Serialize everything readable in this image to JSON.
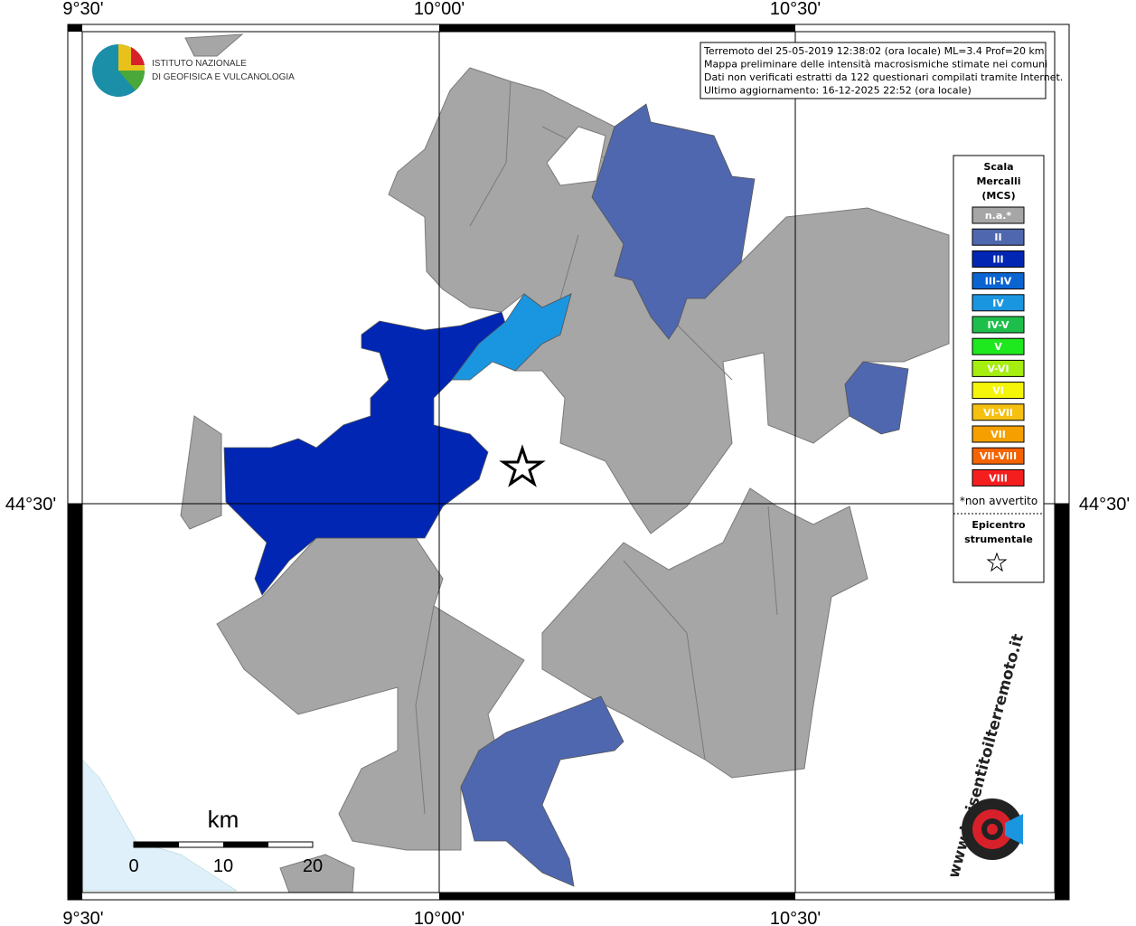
{
  "coordinates": {
    "top": [
      "9°30'",
      "10°00'",
      "10°30'"
    ],
    "bottom": [
      "9°30'",
      "10°00'",
      "10°30'"
    ],
    "left": "44°30'",
    "right": "44°30'"
  },
  "logo": {
    "line1": "ISTITUTO NAZIONALE",
    "line2": "DI GEOFISICA E VULCANOLOGIA"
  },
  "info_box": [
    "Terremoto del 25-05-2019 12:38:02 (ora locale) ML=3.4 Prof=20 km",
    "Mappa preliminare delle intensità macrosismiche stimate nei comuni",
    "Dati non verificati estratti da 122 questionari compilati tramite Internet.",
    "Ultimo aggiornamento: 16-12-2025 22:52 (ora locale)"
  ],
  "legend": {
    "title": [
      "Scala",
      "Mercalli",
      "(MCS)"
    ],
    "classes": [
      {
        "label": "n.a.*",
        "color": "#a6a6a6"
      },
      {
        "label": "II",
        "color": "#4f67ae"
      },
      {
        "label": "III",
        "color": "#0026b3"
      },
      {
        "label": "III-IV",
        "color": "#0a64d2"
      },
      {
        "label": "IV",
        "color": "#1a96e0"
      },
      {
        "label": "IV-V",
        "color": "#1dbf4a"
      },
      {
        "label": "V",
        "color": "#1ee81e"
      },
      {
        "label": "V-VI",
        "color": "#a6ee0f"
      },
      {
        "label": "VI",
        "color": "#f5f50a"
      },
      {
        "label": "VI-VII",
        "color": "#f5c010"
      },
      {
        "label": "VII",
        "color": "#f5a000"
      },
      {
        "label": "VII-VIII",
        "color": "#f56400"
      },
      {
        "label": "VIII",
        "color": "#f51e1e"
      }
    ],
    "note": "*non avvertito",
    "epicenter": [
      "Epicentro",
      "strumentale"
    ]
  },
  "scale_bar": {
    "unit": "km",
    "labels": [
      "0",
      "10",
      "20"
    ]
  },
  "site_logo": "www.haisentitoilterremoto.it"
}
